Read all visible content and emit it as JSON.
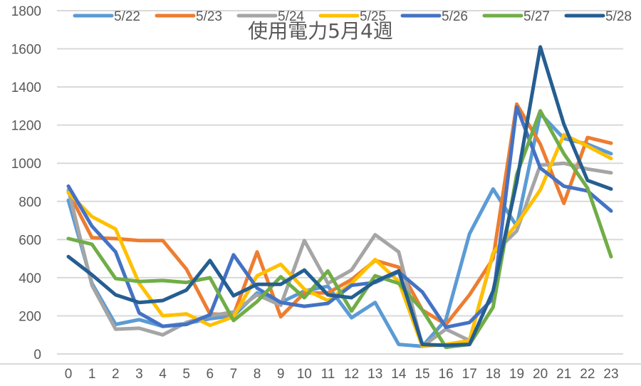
{
  "chart_data": {
    "type": "line",
    "title": "使用電力5月4週",
    "xlabel": "",
    "ylabel": "",
    "ylim": [
      0,
      1800
    ],
    "yticks": [
      0,
      200,
      400,
      600,
      800,
      1000,
      1200,
      1400,
      1600,
      1800
    ],
    "grid": true,
    "legend_position": "top",
    "x": [
      0,
      1,
      2,
      3,
      4,
      5,
      6,
      7,
      8,
      9,
      10,
      11,
      12,
      13,
      14,
      15,
      16,
      17,
      18,
      19,
      20,
      21,
      22,
      23
    ],
    "series": [
      {
        "name": "5/22",
        "color": "#5B9BD5",
        "values": [
          806,
          370,
          155,
          180,
          145,
          160,
          185,
          200,
          320,
          270,
          330,
          355,
          190,
          270,
          50,
          40,
          180,
          630,
          865,
          670,
          1260,
          1130,
          1100,
          1050
        ]
      },
      {
        "name": "5/23",
        "color": "#ED7D31",
        "values": [
          850,
          610,
          605,
          595,
          595,
          445,
          210,
          205,
          535,
          195,
          320,
          320,
          390,
          490,
          455,
          230,
          155,
          310,
          500,
          1310,
          1100,
          790,
          1135,
          1105
        ]
      },
      {
        "name": "5/24",
        "color": "#A5A5A5",
        "values": [
          860,
          360,
          130,
          135,
          100,
          165,
          200,
          220,
          310,
          255,
          595,
          370,
          440,
          625,
          535,
          40,
          130,
          70,
          525,
          645,
          990,
          1000,
          970,
          950
        ]
      },
      {
        "name": "5/25",
        "color": "#FFC000",
        "values": [
          845,
          720,
          655,
          370,
          200,
          210,
          150,
          195,
          410,
          470,
          340,
          280,
          370,
          495,
          380,
          40,
          50,
          70,
          530,
          680,
          860,
          1150,
          1090,
          1025
        ]
      },
      {
        "name": "5/26",
        "color": "#4472C4",
        "values": [
          880,
          670,
          535,
          215,
          145,
          155,
          205,
          520,
          345,
          270,
          250,
          265,
          360,
          375,
          430,
          325,
          140,
          165,
          290,
          1295,
          975,
          880,
          855,
          750
        ]
      },
      {
        "name": "5/27",
        "color": "#70AD47",
        "values": [
          605,
          575,
          395,
          380,
          385,
          375,
          400,
          175,
          275,
          405,
          295,
          435,
          225,
          410,
          370,
          230,
          35,
          50,
          245,
          940,
          1275,
          1050,
          870,
          510
        ]
      },
      {
        "name": "5/28",
        "color": "#255E91",
        "values": [
          510,
          415,
          310,
          270,
          280,
          335,
          490,
          305,
          365,
          365,
          440,
          310,
          295,
          380,
          435,
          50,
          45,
          50,
          330,
          900,
          1610,
          1205,
          910,
          865
        ]
      }
    ]
  }
}
